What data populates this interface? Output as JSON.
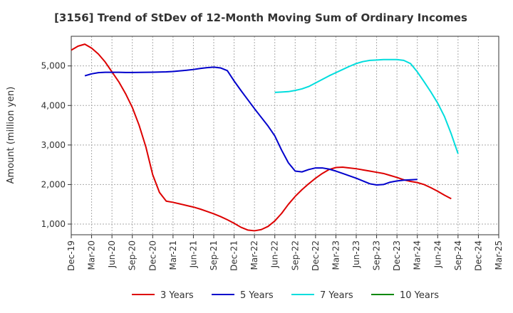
{
  "chart_data": {
    "type": "line",
    "title": "[3156]  Trend of StDev of 12-Month Moving Sum of Ordinary Incomes",
    "ylabel": "Amount (million yen)",
    "xlabel": "",
    "ylim": [
      730,
      5750
    ],
    "yticks": [
      1000,
      2000,
      3000,
      4000,
      5000
    ],
    "ytick_labels": [
      "1,000",
      "2,000",
      "3,000",
      "4,000",
      "5,000"
    ],
    "x_labels": [
      "Dec-19",
      "Mar-20",
      "Jun-20",
      "Sep-20",
      "Dec-20",
      "Mar-21",
      "Jun-21",
      "Sep-21",
      "Dec-21",
      "Mar-22",
      "Jun-22",
      "Sep-22",
      "Dec-22",
      "Mar-23",
      "Jun-23",
      "Sep-23",
      "Dec-23",
      "Mar-24",
      "Jun-24",
      "Sep-24",
      "Dec-24",
      "Mar-25"
    ],
    "grid": true,
    "legend_position": "bottom",
    "series": [
      {
        "name": "3 Years",
        "color": "#dd0000",
        "start_index": 0,
        "values": [
          5400,
          5500,
          5550,
          5450,
          5300,
          5100,
          4850,
          4600,
          4300,
          3950,
          3500,
          2950,
          2250,
          1800,
          1580,
          1550,
          1510,
          1470,
          1430,
          1380,
          1320,
          1260,
          1190,
          1110,
          1020,
          920,
          850,
          830,
          860,
          940,
          1080,
          1270,
          1500,
          1700,
          1870,
          2020,
          2160,
          2280,
          2380,
          2430,
          2440,
          2420,
          2400,
          2370,
          2340,
          2310,
          2280,
          2230,
          2180,
          2120,
          2080,
          2050,
          2000,
          1920,
          1830,
          1730,
          1640
        ]
      },
      {
        "name": "5 Years",
        "color": "#0000cc",
        "start_index": 2,
        "values": [
          4750,
          4800,
          4830,
          4840,
          4840,
          4840,
          4835,
          4835,
          4838,
          4840,
          4842,
          4845,
          4850,
          4860,
          4875,
          4890,
          4910,
          4935,
          4955,
          4970,
          4950,
          4880,
          4620,
          4380,
          4150,
          3920,
          3700,
          3480,
          3230,
          2870,
          2550,
          2340,
          2320,
          2380,
          2420,
          2420,
          2390,
          2340,
          2280,
          2220,
          2160,
          2090,
          2020,
          1990,
          2000,
          2060,
          2090,
          2110,
          2120,
          2130
        ]
      },
      {
        "name": "7 Years",
        "color": "#00dddd",
        "start_index": 30,
        "values": [
          4330,
          4340,
          4350,
          4380,
          4420,
          4480,
          4570,
          4660,
          4750,
          4830,
          4910,
          4990,
          5060,
          5110,
          5140,
          5150,
          5160,
          5160,
          5160,
          5140,
          5060,
          4850,
          4600,
          4340,
          4060,
          3720,
          3280,
          2780
        ]
      },
      {
        "name": "10 Years",
        "color": "#008800",
        "start_index": 0,
        "values": []
      }
    ]
  }
}
